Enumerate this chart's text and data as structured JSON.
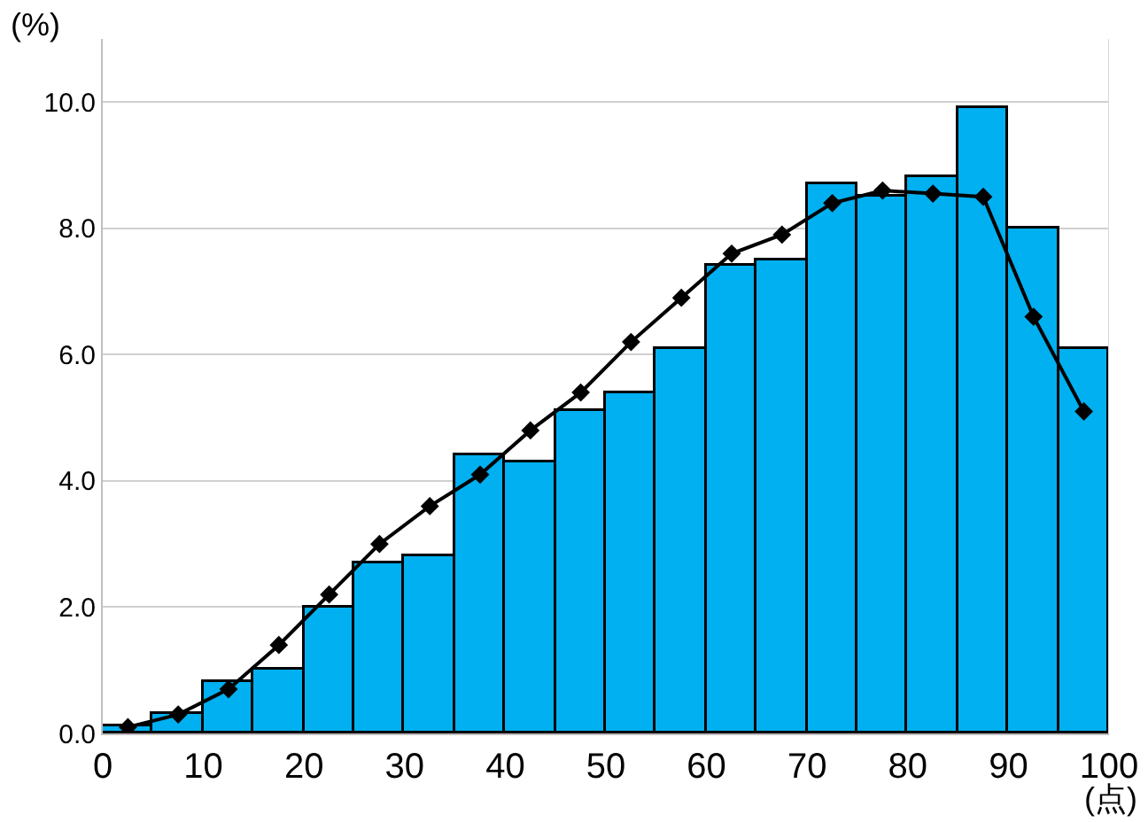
{
  "chart_data": {
    "type": "histogram",
    "xlabel": "(点)",
    "ylabel": "(%)",
    "bins": [
      0,
      5,
      10,
      15,
      20,
      25,
      30,
      35,
      40,
      45,
      50,
      55,
      60,
      65,
      70,
      75,
      80,
      85,
      90,
      95,
      100
    ],
    "values": [
      0.1,
      0.3,
      0.8,
      1.0,
      2.0,
      2.7,
      2.8,
      4.4,
      4.3,
      5.1,
      5.4,
      6.1,
      7.4,
      7.5,
      8.7,
      8.5,
      8.8,
      9.9,
      8.0,
      6.1
    ],
    "color": "#00b0f0",
    "series": [
      {
        "type": "line",
        "color": "#000000",
        "x": [
          2.5,
          7.5,
          12.5,
          17.5,
          22.5,
          27.5,
          32.5,
          37.5,
          42.5,
          47.5,
          52.5,
          57.5,
          62.5,
          67.5,
          72.5,
          77.5,
          82.5,
          87.5,
          92.5,
          97.5
        ],
        "values": [
          0.1,
          0.3,
          0.7,
          1.4,
          2.2,
          3.0,
          3.6,
          4.1,
          4.8,
          5.4,
          6.2,
          6.9,
          7.6,
          7.9,
          8.4,
          8.6,
          8.55,
          8.5,
          6.6,
          5.1
        ]
      }
    ],
    "marker": "diamond",
    "line_style": "solid",
    "xlim": [
      0,
      100
    ],
    "xticks": [
      0,
      10,
      20,
      30,
      40,
      50,
      60,
      70,
      80,
      90,
      100
    ],
    "ylim": [
      0,
      11
    ],
    "yticks": [
      {
        "value": 0,
        "label": "0.0"
      },
      {
        "value": 2,
        "label": "2.0"
      },
      {
        "value": 4,
        "label": "4.0"
      },
      {
        "value": 6,
        "label": "6.0"
      },
      {
        "value": 8,
        "label": "8.0"
      },
      {
        "value": 10,
        "label": "10.0"
      }
    ],
    "grid": "y"
  }
}
